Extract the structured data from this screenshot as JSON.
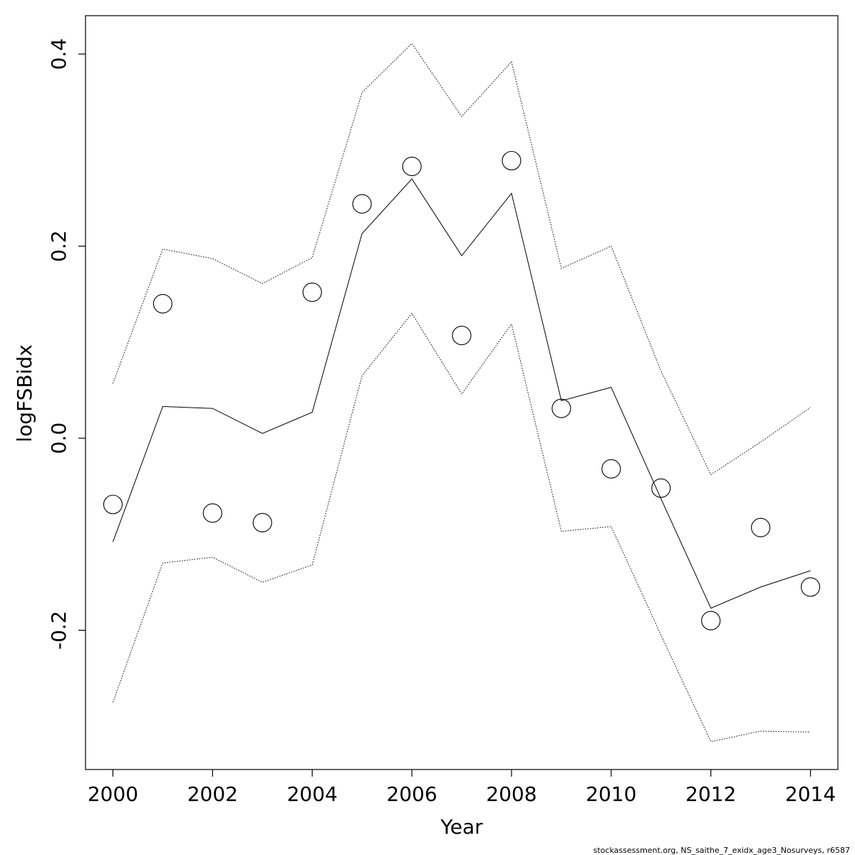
{
  "chart_data": {
    "type": "line",
    "xlabel": "Year",
    "ylabel": "logFSBidx",
    "xlim": [
      1999.45,
      2014.55
    ],
    "ylim": [
      -0.345,
      0.44
    ],
    "x_ticks": [
      2000,
      2002,
      2004,
      2006,
      2008,
      2010,
      2012,
      2014
    ],
    "y_ticks": [
      -0.2,
      0.0,
      0.2,
      0.4
    ],
    "y_tick_labels": [
      "-0.2",
      "0.0",
      "0.2",
      "0.4"
    ],
    "grid": false,
    "x": [
      2000,
      2001,
      2002,
      2003,
      2004,
      2005,
      2006,
      2007,
      2008,
      2009,
      2010,
      2011,
      2012,
      2013,
      2014
    ],
    "observed": [
      -0.069,
      0.14,
      -0.078,
      -0.088,
      0.152,
      0.244,
      0.283,
      0.107,
      0.289,
      0.031,
      -0.032,
      -0.052,
      -0.19,
      -0.093,
      -0.155
    ],
    "fitted": [
      -0.108,
      0.033,
      0.031,
      0.005,
      0.027,
      0.213,
      0.27,
      0.19,
      0.255,
      0.039,
      0.053,
      -0.063,
      -0.177,
      -0.155,
      -0.138
    ],
    "upper": [
      0.057,
      0.197,
      0.187,
      0.161,
      0.188,
      0.36,
      0.411,
      0.335,
      0.392,
      0.177,
      0.2,
      0.07,
      -0.038,
      -0.004,
      0.032
    ],
    "lower": [
      -0.275,
      -0.13,
      -0.124,
      -0.15,
      -0.132,
      0.065,
      0.13,
      0.046,
      0.119,
      -0.097,
      -0.092,
      -0.205,
      -0.316,
      -0.305,
      -0.306
    ]
  },
  "footnote": "stockassessment.org, NS_saithe_7_exidx_age3_Nosurveys, r6587"
}
